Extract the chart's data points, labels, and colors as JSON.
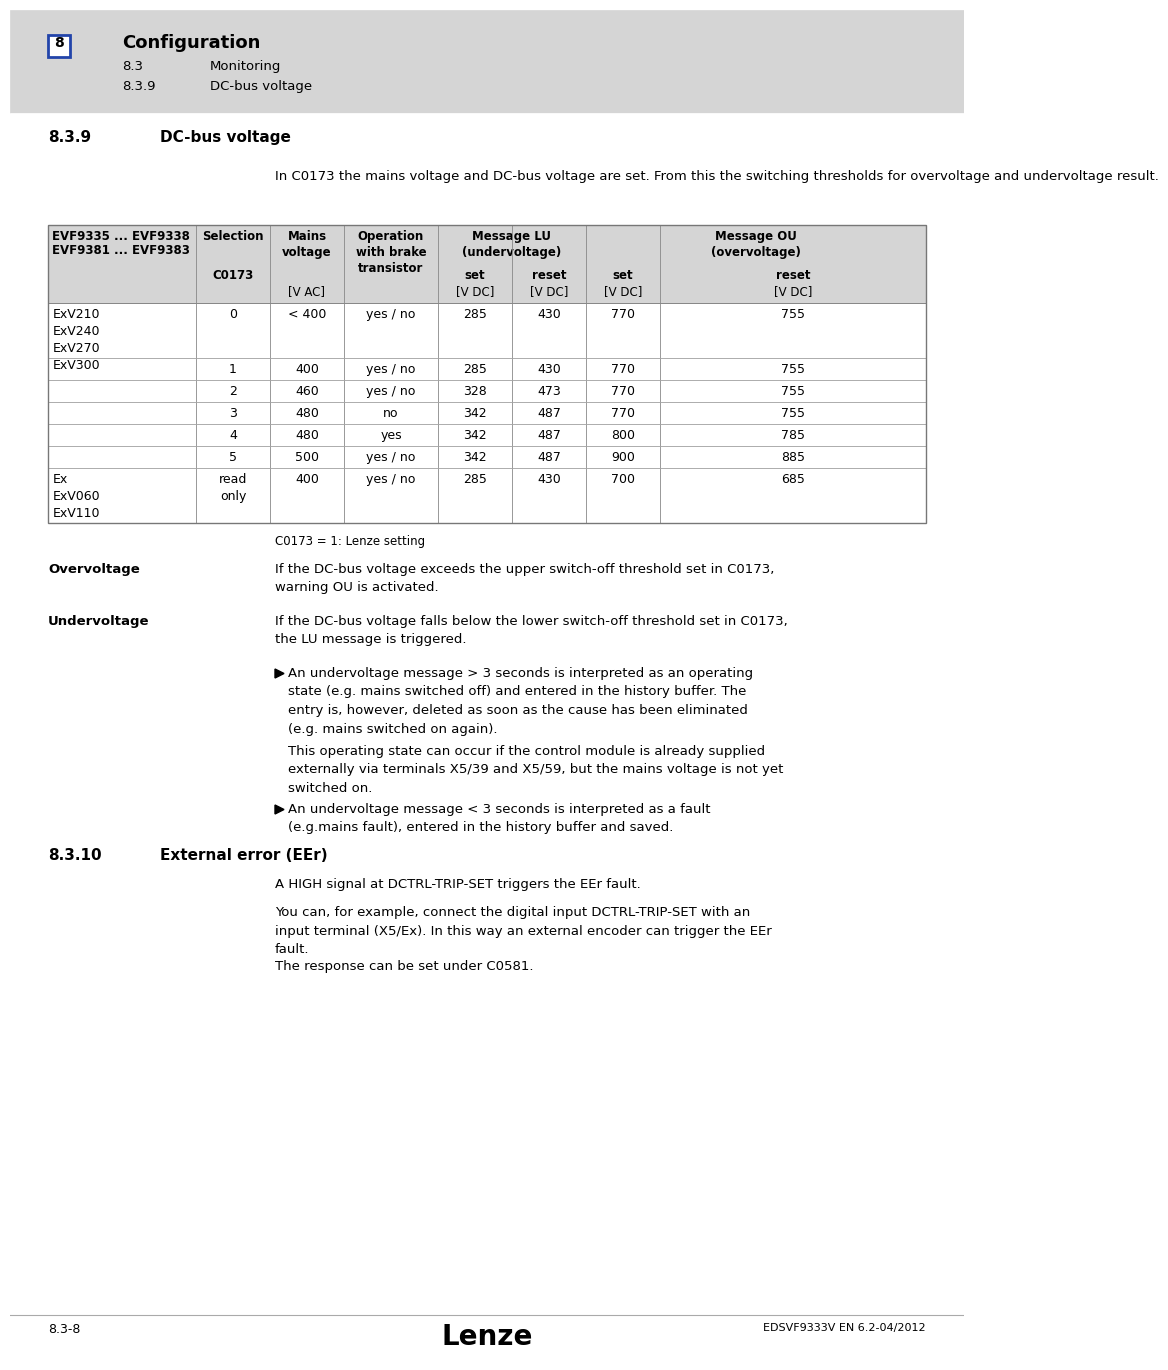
{
  "white": "#ffffff",
  "light_gray": "#d8d8d8",
  "mid_gray": "#c8c8c8",
  "dark_gray": "#888888",
  "black": "#000000",
  "blue_border": "#2244aa",
  "header": {
    "chapter_num": "8",
    "chapter_title": "Configuration",
    "sub1_num": "8.3",
    "sub1_title": "Monitoring",
    "sub2_num": "8.3.9",
    "sub2_title": "DC-bus voltage"
  },
  "section_839_num": "8.3.9",
  "section_839_title": "DC-bus voltage",
  "intro_text": "In C0173 the mains voltage and DC-bus voltage are set. From this the switching thresholds for overvoltage and undervoltage result.",
  "table_note": "C0173 = 1: Lenze setting",
  "table_rows": [
    [
      "ExV210\nExV240\nExV270\nExV300",
      "0",
      "< 400",
      "yes / no",
      "285",
      "430",
      "770",
      "755"
    ],
    [
      "",
      "1",
      "400",
      "yes / no",
      "285",
      "430",
      "770",
      "755"
    ],
    [
      "",
      "2",
      "460",
      "yes / no",
      "328",
      "473",
      "770",
      "755"
    ],
    [
      "",
      "3",
      "480",
      "no",
      "342",
      "487",
      "770",
      "755"
    ],
    [
      "",
      "4",
      "480",
      "yes",
      "342",
      "487",
      "800",
      "785"
    ],
    [
      "",
      "5",
      "500",
      "yes / no",
      "342",
      "487",
      "900",
      "885"
    ],
    [
      "Ex\nExV060\nExV110",
      "read\nonly",
      "400",
      "yes / no",
      "285",
      "430",
      "700",
      "685"
    ]
  ],
  "ov_label": "Overvoltage",
  "ov_text": "If the DC-bus voltage exceeds the upper switch-off threshold set in C0173,\nwarning OU is activated.",
  "uv_label": "Undervoltage",
  "uv_text": "If the DC-bus voltage falls below the lower switch-off threshold set in C0173,\nthe LU message is triggered.",
  "b1_text": "An undervoltage message > 3 seconds is interpreted as an operating\nstate (e.g. mains switched off) and entered in the history buffer. The\nentry is, however, deleted as soon as the cause has been eliminated\n(e.g. mains switched on again).",
  "b1_extra": "This operating state can occur if the control module is already supplied\nexternally via terminals X5/39 and X5/59, but the mains voltage is not yet\nswitched on.",
  "b2_text": "An undervoltage message < 3 seconds is interpreted as a fault\n(e.g.mains fault), entered in the history buffer and saved.",
  "s10_num": "8.3.10",
  "s10_title": "External error (EEr)",
  "s10_p1": "A HIGH signal at DCTRL-TRIP-SET triggers the EEr fault.",
  "s10_p2": "You can, for example, connect the digital input DCTRL-TRIP-SET with an\ninput terminal (X5/Ex). In this way an external encoder can trigger the EEr\nfault.",
  "s10_p3": "The response can be set under C0581.",
  "footer_left": "8.3-8",
  "footer_center": "Lenze",
  "footer_right": "EDSVF9333V EN 6.2-04/2012"
}
